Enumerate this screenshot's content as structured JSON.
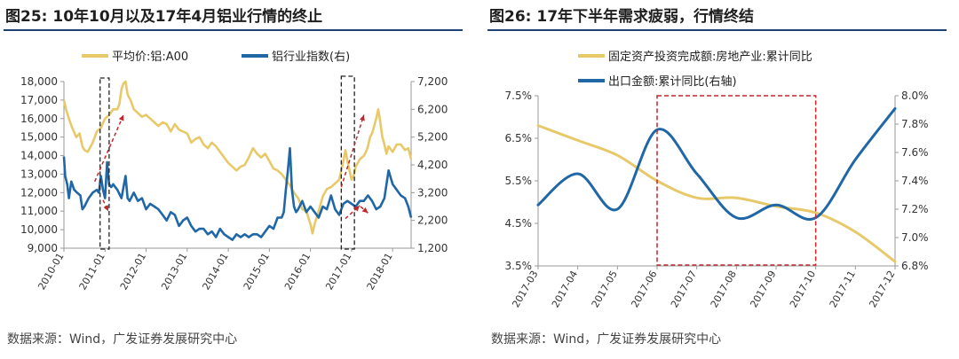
{
  "left_panel": {
    "title": "图25:  10年10月以及17年4月铝业行情的终止",
    "source": "数据来源：Wind，广发证券发展研究中心"
  },
  "right_panel": {
    "title": "图26:  17年下半年需求疲弱，行情终结",
    "source": "数据来源：Wind，广发证券发展研究中心"
  },
  "colors": {
    "gold": "#E8C96A",
    "blue": "#1F67A6",
    "red": "#C0282D",
    "rule": "#1f3f70"
  },
  "chart_data": [
    {
      "type": "line",
      "title": "10年10月以及17年4月铝业行情的终止",
      "x_ticks": [
        "2010-01",
        "2011-01",
        "2012-01",
        "2013-01",
        "2014-01",
        "2015-01",
        "2016-01",
        "2017-01",
        "2018-01"
      ],
      "x_range": [
        2010.0,
        2018.45
      ],
      "y_left": {
        "ticks": [
          "18,000",
          "17,000",
          "16,000",
          "15,000",
          "14,000",
          "13,000",
          "12,000",
          "11,000",
          "10,000",
          "9,000"
        ],
        "range": [
          9000,
          18000
        ]
      },
      "y_right": {
        "ticks": [
          "7,200",
          "6,200",
          "5,200",
          "4,200",
          "3,200",
          "2,200",
          "1,200"
        ],
        "range": [
          1200,
          7200
        ]
      },
      "series": [
        {
          "name": "平均价:铝:A00",
          "axis": "left",
          "color": "gold",
          "x": [
            2010.0,
            2010.05,
            2010.12,
            2010.2,
            2010.3,
            2010.38,
            2010.45,
            2010.5,
            2010.58,
            2010.7,
            2010.8,
            2010.9,
            2011.0,
            2011.1,
            2011.2,
            2011.3,
            2011.35,
            2011.4,
            2011.45,
            2011.5,
            2011.55,
            2011.62,
            2011.7,
            2011.8,
            2011.9,
            2012.0,
            2012.1,
            2012.2,
            2012.3,
            2012.4,
            2012.5,
            2012.6,
            2012.7,
            2012.8,
            2012.9,
            2013.0,
            2013.1,
            2013.2,
            2013.3,
            2013.4,
            2013.5,
            2013.6,
            2013.7,
            2013.8,
            2013.9,
            2014.0,
            2014.1,
            2014.2,
            2014.3,
            2014.4,
            2014.5,
            2014.6,
            2014.7,
            2014.8,
            2014.9,
            2015.0,
            2015.1,
            2015.2,
            2015.3,
            2015.4,
            2015.5,
            2015.6,
            2015.7,
            2015.8,
            2015.9,
            2016.0,
            2016.05,
            2016.1,
            2016.2,
            2016.3,
            2016.4,
            2016.5,
            2016.6,
            2016.7,
            2016.8,
            2016.85,
            2016.9,
            2017.0,
            2017.05,
            2017.1,
            2017.2,
            2017.3,
            2017.35,
            2017.4,
            2017.45,
            2017.5,
            2017.55,
            2017.6,
            2017.65,
            2017.7,
            2017.75,
            2017.8,
            2017.85,
            2017.9,
            2018.0,
            2018.1,
            2018.2,
            2018.3,
            2018.38,
            2018.45
          ],
          "values": [
            17000,
            16500,
            16000,
            15500,
            15000,
            15200,
            14500,
            14300,
            14200,
            14700,
            15300,
            15500,
            16000,
            16200,
            16500,
            16500,
            16800,
            17600,
            17900,
            18000,
            17300,
            17000,
            16500,
            16300,
            16100,
            16200,
            16000,
            15800,
            15600,
            15800,
            15700,
            15300,
            15700,
            15400,
            15300,
            15200,
            14700,
            14900,
            15000,
            14600,
            14400,
            14700,
            14500,
            14200,
            13900,
            13600,
            13400,
            13200,
            13400,
            13500,
            13900,
            14400,
            14100,
            13900,
            14100,
            13700,
            13300,
            13200,
            13000,
            12700,
            12400,
            12000,
            11700,
            11100,
            11000,
            10300,
            9800,
            10300,
            11000,
            11800,
            12200,
            12300,
            12500,
            12700,
            13700,
            14300,
            13700,
            12700,
            12900,
            13400,
            13800,
            14000,
            14200,
            14500,
            15000,
            15200,
            15600,
            16000,
            16500,
            15800,
            15000,
            14600,
            14100,
            14500,
            14200,
            14600,
            14600,
            14300,
            14400,
            13800
          ]
        },
        {
          "name": "铝行业指数(右)",
          "axis": "right",
          "color": "blue",
          "x": [
            2010.0,
            2010.03,
            2010.08,
            2010.12,
            2010.18,
            2010.25,
            2010.32,
            2010.4,
            2010.45,
            2010.5,
            2010.6,
            2010.7,
            2010.8,
            2010.85,
            2010.9,
            2010.95,
            2011.0,
            2011.05,
            2011.1,
            2011.15,
            2011.2,
            2011.3,
            2011.4,
            2011.5,
            2011.55,
            2011.6,
            2011.7,
            2011.8,
            2011.9,
            2012.0,
            2012.1,
            2012.2,
            2012.3,
            2012.4,
            2012.5,
            2012.6,
            2012.7,
            2012.8,
            2012.9,
            2013.0,
            2013.1,
            2013.2,
            2013.3,
            2013.4,
            2013.5,
            2013.6,
            2013.7,
            2013.8,
            2013.9,
            2014.0,
            2014.1,
            2014.2,
            2014.3,
            2014.4,
            2014.5,
            2014.6,
            2014.7,
            2014.8,
            2014.9,
            2015.0,
            2015.1,
            2015.2,
            2015.3,
            2015.35,
            2015.4,
            2015.45,
            2015.5,
            2015.55,
            2015.6,
            2015.65,
            2015.7,
            2015.8,
            2015.9,
            2016.0,
            2016.1,
            2016.2,
            2016.3,
            2016.4,
            2016.5,
            2016.6,
            2016.7,
            2016.8,
            2016.9,
            2017.0,
            2017.1,
            2017.2,
            2017.3,
            2017.4,
            2017.5,
            2017.6,
            2017.7,
            2017.8,
            2017.9,
            2018.0,
            2018.1,
            2018.2,
            2018.3,
            2018.38,
            2018.45
          ],
          "values": [
            4500,
            3800,
            3500,
            3000,
            3600,
            3300,
            3200,
            3100,
            2600,
            2700,
            3000,
            3200,
            3300,
            3200,
            3800,
            3300,
            3000,
            4300,
            3500,
            3400,
            3500,
            3300,
            3000,
            3800,
            3000,
            2900,
            3200,
            2900,
            3000,
            2600,
            2800,
            2700,
            2600,
            2400,
            2200,
            2500,
            2400,
            2000,
            2200,
            2300,
            2000,
            1800,
            1900,
            1900,
            1700,
            1800,
            1600,
            1900,
            1700,
            1600,
            1500,
            1700,
            1600,
            1700,
            1600,
            1700,
            1700,
            1600,
            1800,
            2000,
            1900,
            2300,
            2300,
            2500,
            3300,
            4000,
            4800,
            3300,
            2700,
            2500,
            2600,
            2900,
            2500,
            2700,
            2500,
            2300,
            2700,
            2600,
            3100,
            2600,
            2400,
            2800,
            2900,
            2800,
            2700,
            2900,
            2900,
            3100,
            2900,
            2600,
            2700,
            3000,
            4000,
            3500,
            3300,
            3100,
            3000,
            2700,
            2300
          ]
        }
      ],
      "annotations": [
        "dashed-box 2010.9-2011.1",
        "dashed-box 2016.75-2017.05",
        "trend arrows"
      ]
    },
    {
      "type": "line",
      "title": "17年下半年需求疲弱，行情终结",
      "categories": [
        "2017-03",
        "2017-04",
        "2017-05",
        "2017-06",
        "2017-07",
        "2017-08",
        "2017-09",
        "2017-10",
        "2017-11",
        "2017-12"
      ],
      "y_left": {
        "ticks": [
          "7.5%",
          "6.5%",
          "5.5%",
          "4.5%",
          "3.5%"
        ],
        "range": [
          3.5,
          7.5
        ]
      },
      "y_right": {
        "ticks": [
          "8.0%",
          "7.8%",
          "7.6%",
          "7.4%",
          "7.2%",
          "7.0%",
          "6.8%"
        ],
        "range": [
          6.8,
          8.0
        ]
      },
      "series": [
        {
          "name": "固定资产投资完成额:房地产业:累计同比",
          "axis": "left",
          "color": "gold",
          "values": [
            6.8,
            6.45,
            6.1,
            5.5,
            5.1,
            5.1,
            4.9,
            4.75,
            4.3,
            3.6
          ]
        },
        {
          "name": "出口金额:累计同比(右轴)",
          "axis": "right",
          "color": "blue",
          "values": [
            7.23,
            7.45,
            7.2,
            7.76,
            7.45,
            7.14,
            7.23,
            7.14,
            7.55,
            7.91
          ]
        }
      ],
      "annotations": [
        "dashed-box 2017-06 to 2017-10"
      ]
    }
  ]
}
